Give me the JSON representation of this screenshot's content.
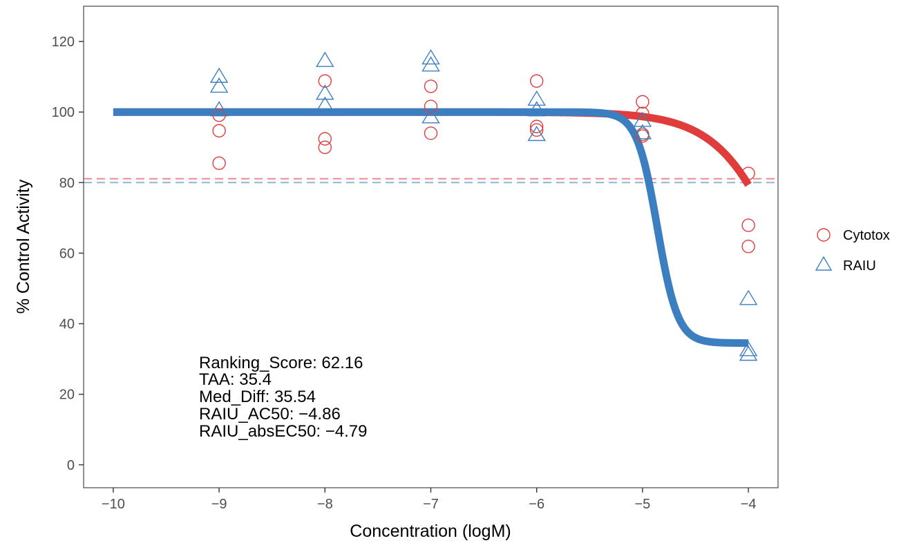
{
  "chart_data": {
    "type": "scatter",
    "xlabel": "Concentration (logM)",
    "ylabel": "% Control Activity",
    "xlim": [
      -10.28,
      -3.72
    ],
    "ylim": [
      -6.5,
      130
    ],
    "x_ticks": [
      -10,
      -9,
      -8,
      -7,
      -6,
      -5,
      -4
    ],
    "x_tick_labels": [
      "−10",
      "−9",
      "−8",
      "−7",
      "−6",
      "−5",
      "−4"
    ],
    "y_ticks": [
      0,
      20,
      40,
      60,
      80,
      100,
      120
    ],
    "y_tick_labels": [
      "0",
      "20",
      "40",
      "60",
      "80",
      "100",
      "120"
    ],
    "grid": false,
    "legend_position": "right",
    "series": [
      {
        "name": "Cytotox",
        "marker": "circle",
        "color": "#e03c3c",
        "points": [
          {
            "x": -9,
            "y": 85.5
          },
          {
            "x": -9,
            "y": 94.7
          },
          {
            "x": -9,
            "y": 99.1
          },
          {
            "x": -8,
            "y": 90.0
          },
          {
            "x": -8,
            "y": 92.4
          },
          {
            "x": -8,
            "y": 108.8
          },
          {
            "x": -7,
            "y": 94.0
          },
          {
            "x": -7,
            "y": 101.6
          },
          {
            "x": -7,
            "y": 107.3
          },
          {
            "x": -6,
            "y": 94.9
          },
          {
            "x": -6,
            "y": 95.9
          },
          {
            "x": -6,
            "y": 108.8
          },
          {
            "x": -5,
            "y": 93.2
          },
          {
            "x": -5,
            "y": 93.7
          },
          {
            "x": -5,
            "y": 99.6
          },
          {
            "x": -5,
            "y": 102.9
          },
          {
            "x": -4,
            "y": 61.9
          },
          {
            "x": -4,
            "y": 67.9
          },
          {
            "x": -4,
            "y": 82.6
          }
        ],
        "fit": {
          "top": 100,
          "bottom": 0,
          "log_ac50": -3.55,
          "hill": 1.3
        },
        "cutoff": 81.1,
        "cutoff_color": "#f08a8a"
      },
      {
        "name": "RAIU",
        "marker": "triangle",
        "color": "#3c7fc0",
        "points": [
          {
            "x": -9,
            "y": 100.5
          },
          {
            "x": -9,
            "y": 107.2
          },
          {
            "x": -9,
            "y": 110.0
          },
          {
            "x": -8,
            "y": 101.8
          },
          {
            "x": -8,
            "y": 105.2
          },
          {
            "x": -8,
            "y": 114.5
          },
          {
            "x": -7,
            "y": 98.5
          },
          {
            "x": -7,
            "y": 113.2
          },
          {
            "x": -7,
            "y": 115.2
          },
          {
            "x": -6,
            "y": 93.5
          },
          {
            "x": -6,
            "y": 100.5
          },
          {
            "x": -6,
            "y": 103.5
          },
          {
            "x": -5,
            "y": 94.0
          },
          {
            "x": -5,
            "y": 97.5
          },
          {
            "x": -4,
            "y": 31.2
          },
          {
            "x": -4,
            "y": 32.5
          },
          {
            "x": -4,
            "y": 47.0
          }
        ],
        "fit": {
          "top": 100,
          "bottom": 34.5,
          "log_ac50": -4.86,
          "hill": 4.5
        },
        "cutoff": 80.0,
        "cutoff_color": "#8fb5dc"
      }
    ],
    "annotations": [
      "Ranking_Score: 62.16",
      "TAA: 35.4",
      "Med_Diff: 35.54",
      "RAIU_AC50: −4.86",
      "RAIU_absEC50: −4.79"
    ]
  }
}
